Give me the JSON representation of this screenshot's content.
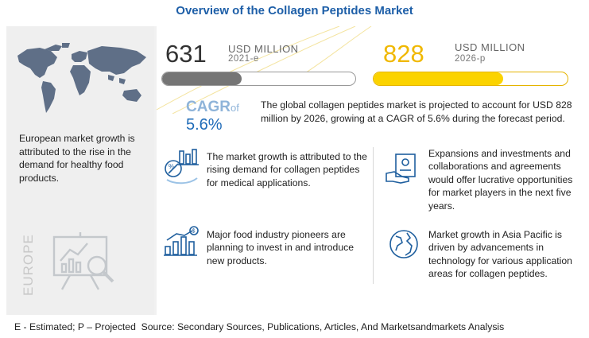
{
  "title": "Overview of the Collagen Peptides Market",
  "left_panel": {
    "region_text": "European market growth is attributed to the rise in the demand for healthy food products.",
    "region_label": "EUROPE"
  },
  "market": {
    "value_2021": "631",
    "unit_2021": "USD MILLION",
    "year_2021": "2021-e",
    "value_2026": "828",
    "unit_2026": "USD MILLION",
    "year_2026": "2026-p",
    "cagr_label": "CAGR",
    "cagr_of": "of",
    "cagr_value": "5.6%",
    "summary": "The global collagen peptides market is projected to account for USD 828 million by 2026, growing at a CAGR of 5.6% during the forecast period."
  },
  "points": [
    {
      "text": "The market growth is attributed to the rising demand for collagen peptides for medical applications.",
      "icon": "medical-chart-icon"
    },
    {
      "text": "Expansions and investments and collaborations and agreements would offer lucrative opportunities for market players in the next five years.",
      "icon": "handshake-document-icon"
    },
    {
      "text": "Major food industry pioneers are planning to invest in and introduce new products.",
      "icon": "investment-bars-icon"
    },
    {
      "text": "Market growth in Asia Pacific is driven by advancements in technology for various application areas for collagen peptides.",
      "icon": "globe-icon"
    }
  ],
  "footer": "E - Estimated; P – Projected  Source: Secondary Sources, Publications, Articles, And Marketsandmarkets Analysis",
  "colors": {
    "title": "#1e5fa8",
    "accent_yellow": "#fbd300",
    "bar_grey": "#757575",
    "cagr_blue": "#1e6bb8"
  },
  "chart_data": {
    "type": "bar",
    "categories": [
      "2021-e",
      "2026-p"
    ],
    "values": [
      631,
      828
    ],
    "ylabel": "USD MILLION",
    "fill_fraction": [
      0.41,
      0.67
    ]
  }
}
